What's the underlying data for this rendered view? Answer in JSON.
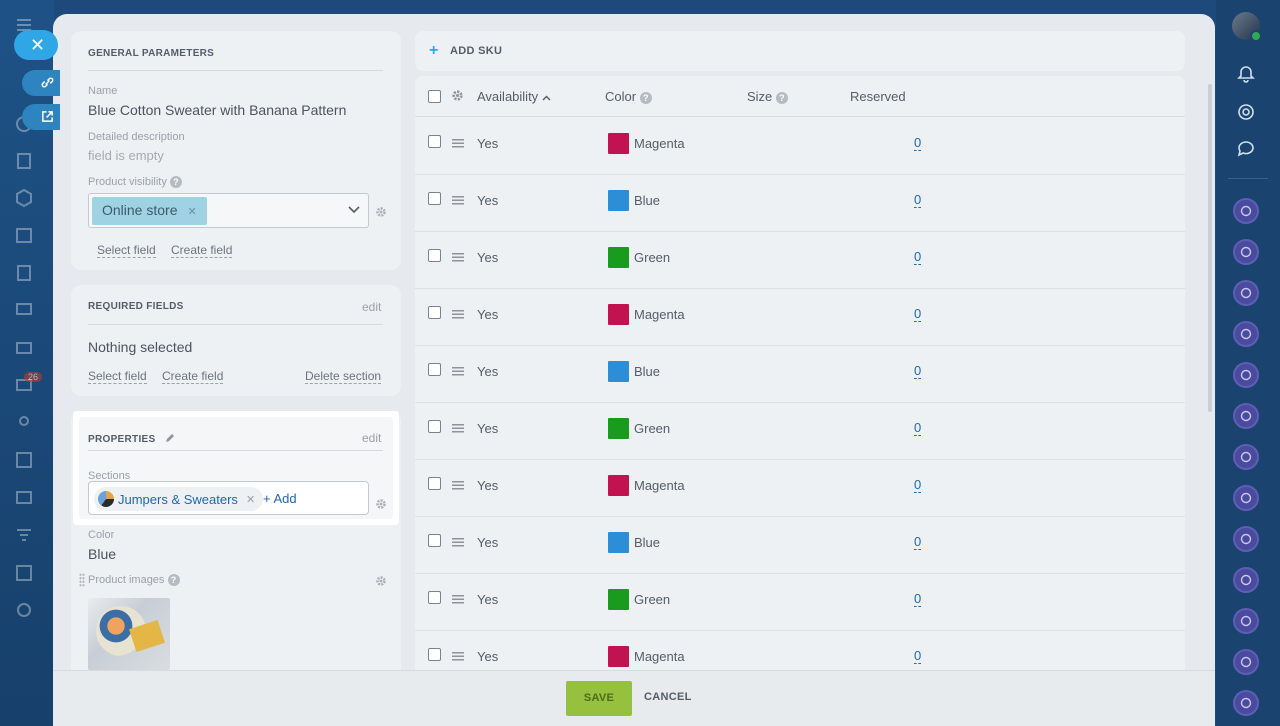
{
  "general": {
    "title": "GENERAL PARAMETERS",
    "name_label": "Name",
    "name_value": "Blue Cotton Sweater with Banana Pattern",
    "desc_label": "Detailed description",
    "desc_value": "field is empty",
    "visibility_label": "Product visibility",
    "visibility_chip": "Online store",
    "select_field": "Select field",
    "create_field": "Create field"
  },
  "required": {
    "title": "REQUIRED FIELDS",
    "edit": "edit",
    "value": "Nothing selected",
    "select_field": "Select field",
    "create_field": "Create field",
    "delete_section": "Delete section"
  },
  "properties": {
    "title": "PROPERTIES",
    "edit": "edit",
    "sections_label": "Sections",
    "section_chip": "Jumpers & Sweaters",
    "add_label": "+ Add"
  },
  "color_field": {
    "label": "Color",
    "value": "Blue"
  },
  "images": {
    "label": "Product images"
  },
  "sku": {
    "add_label": "ADD SKU",
    "columns": {
      "availability": "Availability",
      "color": "Color",
      "size": "Size",
      "reserved": "Reserved"
    },
    "rows": [
      {
        "availability": "Yes",
        "color": "Magenta",
        "swatch": "#c1134f",
        "reserved": "0"
      },
      {
        "availability": "Yes",
        "color": "Blue",
        "swatch": "#2b8ed6",
        "reserved": "0"
      },
      {
        "availability": "Yes",
        "color": "Green",
        "swatch": "#199c1e",
        "reserved": "0"
      },
      {
        "availability": "Yes",
        "color": "Magenta",
        "swatch": "#c1134f",
        "reserved": "0"
      },
      {
        "availability": "Yes",
        "color": "Blue",
        "swatch": "#2b8ed6",
        "reserved": "0"
      },
      {
        "availability": "Yes",
        "color": "Green",
        "swatch": "#199c1e",
        "reserved": "0"
      },
      {
        "availability": "Yes",
        "color": "Magenta",
        "swatch": "#c1134f",
        "reserved": "0"
      },
      {
        "availability": "Yes",
        "color": "Blue",
        "swatch": "#2b8ed6",
        "reserved": "0"
      },
      {
        "availability": "Yes",
        "color": "Green",
        "swatch": "#199c1e",
        "reserved": "0"
      },
      {
        "availability": "Yes",
        "color": "Magenta",
        "swatch": "#c1134f",
        "reserved": "0"
      }
    ]
  },
  "footer": {
    "save": "SAVE",
    "cancel": "CANCEL"
  },
  "sidebar": {
    "close": "✕",
    "badge": "26"
  },
  "colors": {
    "accent": "#2fa6e6",
    "save": "#95c13e",
    "link": "#2067b0"
  }
}
